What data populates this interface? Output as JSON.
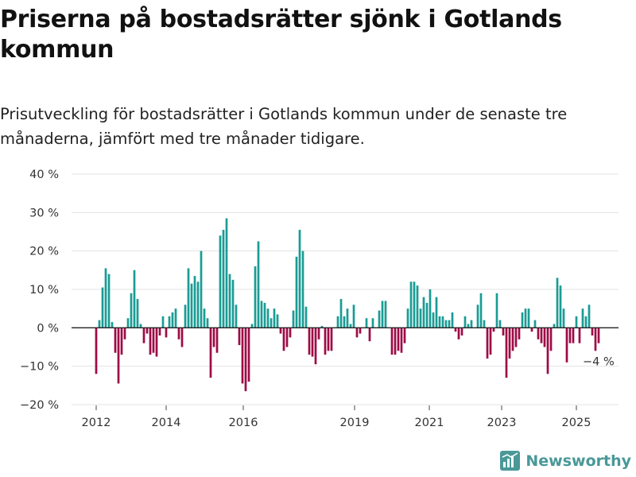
{
  "header": {
    "title": "Priserna på bostadsrätter sjönk i Gotlands kommun",
    "subtitle": "Prisutveckling för bostadsrätter i Gotlands kommun under de senaste tre månaderna, jämfört med tre månader tidigare."
  },
  "brand": {
    "name": "Newsworthy",
    "icon": "newsworthy-logo-icon"
  },
  "colors": {
    "positive": "#1a9c94",
    "negative": "#9e0a45",
    "grid": "#e3e3e3",
    "axis": "#222222",
    "brand": "#4a9898"
  },
  "chart_data": {
    "type": "bar",
    "title": "Priserna på bostadsrätter sjönk i Gotlands kommun",
    "subtitle": "Prisutveckling för bostadsrätter i Gotlands kommun under de senaste tre månaderna, jämfört med tre månader tidigare.",
    "xlabel": "",
    "ylabel": "",
    "ylim": [
      -20,
      40
    ],
    "y_ticks": [
      {
        "value": 40,
        "label": "40 %"
      },
      {
        "value": 30,
        "label": "30 %"
      },
      {
        "value": 20,
        "label": "20 %"
      },
      {
        "value": 10,
        "label": "10 %"
      },
      {
        "value": 0,
        "label": "0 %"
      },
      {
        "value": -10,
        "label": "−10 %"
      },
      {
        "value": -20,
        "label": "−20 %"
      }
    ],
    "x_ticks": [
      "2012",
      "2014",
      "2016",
      "2019",
      "2021",
      "2023",
      "2025"
    ],
    "grid": true,
    "legend": "none",
    "unit": "%",
    "annotation": {
      "label": "−4 %",
      "target": "last bar"
    },
    "series": [
      {
        "values": [
          -12,
          2,
          10.5,
          15.5,
          14,
          1.5,
          -6.5,
          -14.5,
          -7,
          -3,
          2.5,
          9,
          15,
          7.5,
          1,
          -4,
          -1.5,
          -7,
          -6.5,
          -7.5,
          -2,
          3,
          -2.5,
          3,
          4,
          5,
          -3,
          -5,
          6,
          15.5,
          11.5,
          13.5,
          12,
          20,
          5,
          2.5,
          -13,
          -5,
          -6.5,
          24,
          25.5,
          28.5,
          14,
          12.5,
          6,
          -4.5,
          -14.5,
          -16.5,
          -14,
          1,
          16,
          22.5,
          7,
          6.5,
          5,
          2.5,
          5,
          3.5,
          -1.5,
          -6,
          -5,
          -2.5,
          4.5,
          18.5,
          25.5,
          20,
          5.5,
          -7,
          -7.5,
          -9.5,
          -3,
          0.5,
          -7,
          -6,
          -6,
          0,
          3,
          7.5,
          3,
          5,
          1,
          6,
          -2.5,
          -1.5,
          0,
          2.5,
          -3.5,
          2.5,
          0,
          4.5,
          7,
          7,
          0,
          -7,
          -7,
          -6,
          -6.5,
          -4,
          5,
          12,
          12,
          11,
          5,
          8,
          6.5,
          10,
          4,
          8,
          3,
          3,
          2,
          2,
          4,
          -1,
          -3,
          -2,
          3,
          1,
          2,
          0,
          6,
          9,
          2,
          -8,
          -7,
          -1,
          9,
          2,
          -2,
          -13,
          -8,
          -6,
          -5,
          -3,
          4,
          5,
          5,
          -1,
          2,
          -3,
          -4,
          -5,
          -12,
          -6,
          1,
          13,
          11,
          5,
          -9,
          -4,
          -4,
          3,
          -4,
          5,
          3,
          6,
          -2,
          -6,
          -4
        ]
      }
    ]
  }
}
